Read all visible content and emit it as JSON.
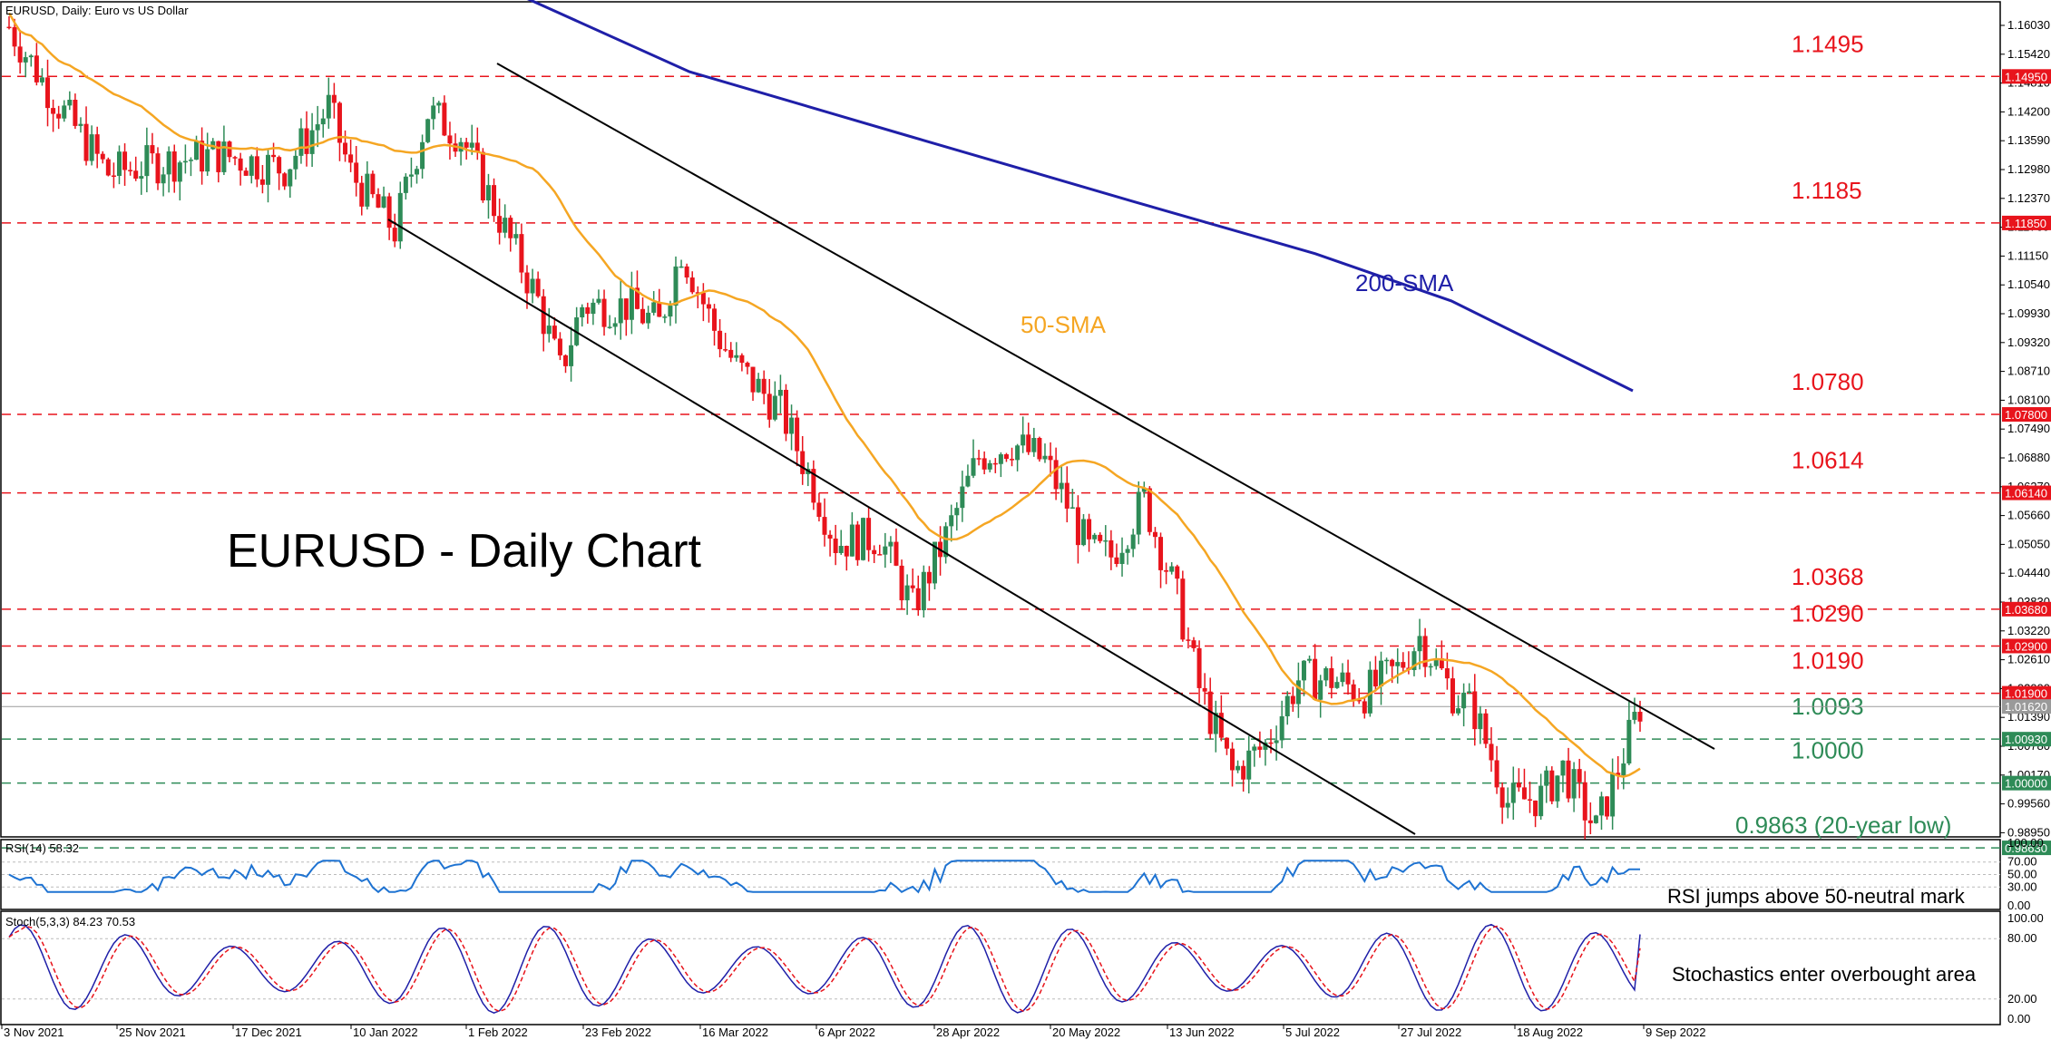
{
  "header": {
    "symbol_line": "EURUSD, Daily:  Euro vs US Dollar"
  },
  "main_title": "EURUSD - Daily Chart",
  "chart_data": {
    "type": "candlestick",
    "title": "EURUSD - Daily Chart",
    "y_ticks": [
      "1.16030",
      "1.15420",
      "1.14810",
      "1.14200",
      "1.13590",
      "1.12980",
      "1.12370",
      "1.11760",
      "1.11150",
      "1.10540",
      "1.09930",
      "1.09320",
      "1.08710",
      "1.08100",
      "1.07490",
      "1.06880",
      "1.06270",
      "1.05660",
      "1.05050",
      "1.04440",
      "1.03830",
      "1.03220",
      "1.02610",
      "1.02000",
      "1.01390",
      "1.00780",
      "1.00170",
      "0.99560",
      "0.98950"
    ],
    "x_ticks": [
      "3 Nov 2021",
      "25 Nov 2021",
      "17 Dec 2021",
      "10 Jan 2022",
      "1 Feb 2022",
      "23 Feb 2022",
      "16 Mar 2022",
      "6 Apr 2022",
      "28 Apr 2022",
      "20 May 2022",
      "13 Jun 2022",
      "5 Jul 2022",
      "27 Jul 2022",
      "18 Aug 2022",
      "9 Sep 2022"
    ],
    "levels": [
      {
        "value": 1.1495,
        "label": "1.1495",
        "tag": "1.14950",
        "color": "#e8141c"
      },
      {
        "value": 1.1185,
        "label": "1.1185",
        "tag": "1.11850",
        "color": "#e8141c"
      },
      {
        "value": 1.078,
        "label": "1.0780",
        "tag": "1.07800",
        "color": "#e8141c"
      },
      {
        "value": 1.0614,
        "label": "1.0614",
        "tag": "1.06140",
        "color": "#e8141c"
      },
      {
        "value": 1.0368,
        "label": "1.0368",
        "tag": "1.03680",
        "color": "#e8141c"
      },
      {
        "value": 1.029,
        "label": "1.0290",
        "tag": "1.02900",
        "color": "#e8141c"
      },
      {
        "value": 1.019,
        "label": "1.0190",
        "tag": "1.01900",
        "color": "#e8141c"
      },
      {
        "value": 1.0093,
        "label": "1.0093",
        "tag": "1.00930",
        "color": "#2e8b57"
      },
      {
        "value": 1.0,
        "label": "1.0000",
        "tag": "1.00000",
        "color": "#2e8b57"
      },
      {
        "value": 0.9863,
        "label": "0.9863 (20-year low)",
        "tag": "0.98630",
        "color": "#2e8b57"
      }
    ],
    "current_price": "1.01620",
    "sma50_label": "50-SMA",
    "sma200_label": "200-SMA",
    "colors": {
      "bull": "#2e8b57",
      "bear": "#e8141c",
      "sma50": "#f5a623",
      "sma200": "#1f1fa8",
      "channel": "#000000",
      "rsi": "#1e73d2",
      "stoch_main": "#1f1fa8",
      "stoch_signal": "#e8141c"
    }
  },
  "rsi": {
    "label": "RSI(14) 58.32",
    "ticks": [
      "100.00",
      "70.00",
      "50.00",
      "30.00",
      "0.00"
    ],
    "note": "RSI jumps above 50-neutral mark"
  },
  "stoch": {
    "label": "Stoch(5,3,3) 84.23 70.53",
    "ticks": [
      "100.00",
      "80.00",
      "20.00",
      "0.00"
    ],
    "note": "Stochastics enter overbought area"
  }
}
